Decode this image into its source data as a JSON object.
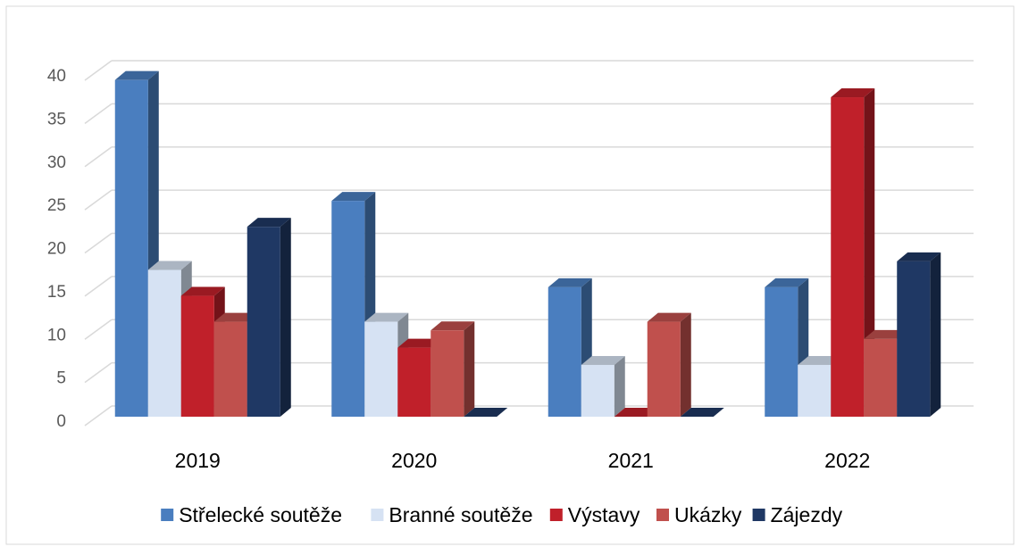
{
  "chart_data": {
    "type": "bar3d",
    "categories": [
      "2019",
      "2020",
      "2021",
      "2022"
    ],
    "series": [
      {
        "name": "Střelecké soutěže",
        "color": "#4a7ebf",
        "values": [
          39,
          25,
          15,
          15
        ]
      },
      {
        "name": "Branné soutěže",
        "color": "#d6e2f3",
        "values": [
          17,
          11,
          6,
          6
        ]
      },
      {
        "name": "Výstavy",
        "color": "#c0202a",
        "values": [
          14,
          8,
          0,
          37
        ]
      },
      {
        "name": "Ukázky",
        "color": "#c0504d",
        "values": [
          11,
          10,
          11,
          9
        ]
      },
      {
        "name": "Zájezdy",
        "color": "#1f3864",
        "values": [
          22,
          0,
          0,
          18
        ]
      }
    ],
    "ylim": [
      0,
      40
    ],
    "yticks": [
      0,
      5,
      10,
      15,
      20,
      25,
      30,
      35,
      40
    ],
    "grid": true,
    "legend": "bottom"
  }
}
